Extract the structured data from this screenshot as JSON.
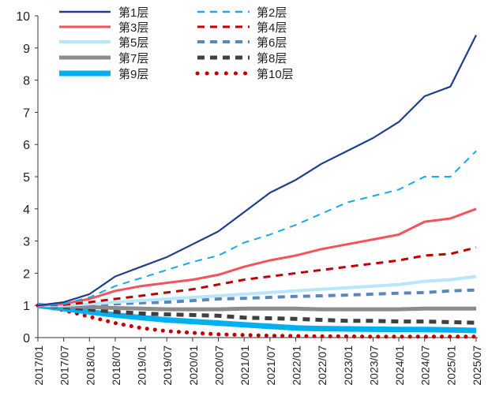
{
  "chart_data": {
    "type": "line",
    "title": "",
    "xlabel": "",
    "ylabel": "",
    "ylim": [
      0,
      10
    ],
    "yticks": [
      "0",
      "1",
      "2",
      "3",
      "4",
      "5",
      "6",
      "7",
      "8",
      "9",
      "10"
    ],
    "x": [
      "2017/01",
      "2017/07",
      "2018/01",
      "2018/07",
      "2019/01",
      "2019/07",
      "2020/01",
      "2020/07",
      "2021/01",
      "2021/07",
      "2022/01",
      "2022/07",
      "2023/01",
      "2023/07",
      "2024/01",
      "2024/07",
      "2025/01",
      "2025/07"
    ],
    "grid": false,
    "legend_position": "top-left",
    "series": [
      {
        "name": "第1层",
        "color": "#1f3f8a",
        "style": "solid",
        "values": [
          1,
          1.1,
          1.35,
          1.9,
          2.2,
          2.5,
          2.9,
          3.3,
          3.9,
          4.5,
          4.9,
          5.4,
          5.8,
          6.2,
          6.7,
          7.5,
          7.8,
          9.4
        ]
      },
      {
        "name": "第2层",
        "color": "#1aa9e8",
        "style": "dash",
        "values": [
          1,
          1.05,
          1.25,
          1.6,
          1.85,
          2.1,
          2.35,
          2.55,
          2.95,
          3.2,
          3.5,
          3.85,
          4.2,
          4.4,
          4.6,
          5.0,
          5.0,
          5.8
        ]
      },
      {
        "name": "第3层",
        "color": "#f4535b",
        "style": "solid",
        "values": [
          1,
          1.05,
          1.2,
          1.45,
          1.6,
          1.7,
          1.8,
          1.95,
          2.2,
          2.4,
          2.55,
          2.75,
          2.9,
          3.05,
          3.2,
          3.6,
          3.7,
          4.0
        ]
      },
      {
        "name": "第4层",
        "color": "#c00000",
        "style": "dash",
        "values": [
          1,
          1.02,
          1.1,
          1.2,
          1.3,
          1.4,
          1.5,
          1.65,
          1.8,
          1.9,
          2.0,
          2.1,
          2.2,
          2.3,
          2.4,
          2.55,
          2.6,
          2.8
        ]
      },
      {
        "name": "第5层",
        "color": "#b8e6fa",
        "style": "solid",
        "values": [
          1,
          1.0,
          1.05,
          1.1,
          1.15,
          1.2,
          1.25,
          1.3,
          1.35,
          1.4,
          1.45,
          1.5,
          1.55,
          1.6,
          1.65,
          1.75,
          1.8,
          1.9
        ]
      },
      {
        "name": "第6层",
        "color": "#5b86b8",
        "style": "dash",
        "values": [
          1,
          1.0,
          1.02,
          1.05,
          1.08,
          1.1,
          1.15,
          1.2,
          1.22,
          1.25,
          1.28,
          1.3,
          1.32,
          1.35,
          1.38,
          1.4,
          1.45,
          1.48
        ]
      },
      {
        "name": "第7层",
        "color": "#8c8c8c",
        "style": "solid",
        "values": [
          1,
          0.98,
          0.95,
          0.92,
          0.9,
          0.88,
          0.88,
          0.88,
          0.9,
          0.9,
          0.9,
          0.88,
          0.88,
          0.88,
          0.88,
          0.9,
          0.9,
          0.9
        ]
      },
      {
        "name": "第8层",
        "color": "#404040",
        "style": "dash",
        "values": [
          1,
          0.95,
          0.88,
          0.8,
          0.75,
          0.72,
          0.7,
          0.68,
          0.62,
          0.6,
          0.58,
          0.55,
          0.52,
          0.52,
          0.5,
          0.5,
          0.48,
          0.46
        ]
      },
      {
        "name": "第9层",
        "color": "#00b0f0",
        "style": "solid",
        "values": [
          1,
          0.9,
          0.8,
          0.7,
          0.62,
          0.55,
          0.5,
          0.45,
          0.4,
          0.35,
          0.3,
          0.28,
          0.27,
          0.26,
          0.25,
          0.25,
          0.24,
          0.22
        ]
      },
      {
        "name": "第10层",
        "color": "#c00000",
        "style": "dot",
        "values": [
          1,
          0.85,
          0.65,
          0.45,
          0.3,
          0.2,
          0.15,
          0.1,
          0.08,
          0.06,
          0.05,
          0.04,
          0.04,
          0.03,
          0.03,
          0.03,
          0.03,
          0.03
        ]
      }
    ]
  }
}
